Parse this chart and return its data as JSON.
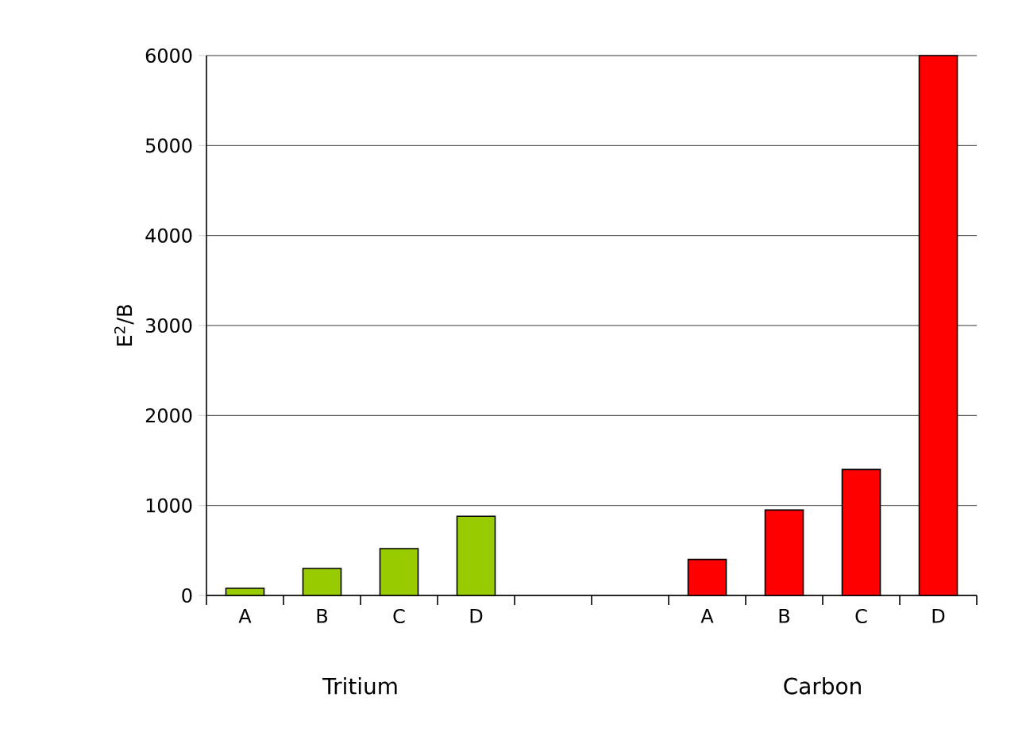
{
  "chart_data": {
    "type": "bar",
    "ylabel": "E$^{2}$/B",
    "categories": [
      "A",
      "B",
      "C",
      "D",
      null,
      null,
      "A",
      "B",
      "C",
      "D"
    ],
    "series": [
      {
        "color": "#99cc00",
        "values": [
          80,
          300,
          520,
          880,
          null,
          null,
          null,
          null,
          null,
          null
        ]
      },
      {
        "color": "#ff0000",
        "values": [
          null,
          null,
          null,
          null,
          null,
          null,
          400,
          950,
          1400,
          6000
        ]
      }
    ],
    "ylim": [
      0,
      6000
    ],
    "yticks": [
      0,
      1000,
      2000,
      3000,
      4000,
      5000,
      6000
    ],
    "grid": "y",
    "annotations": [
      "Tritium",
      "Carbon"
    ]
  }
}
